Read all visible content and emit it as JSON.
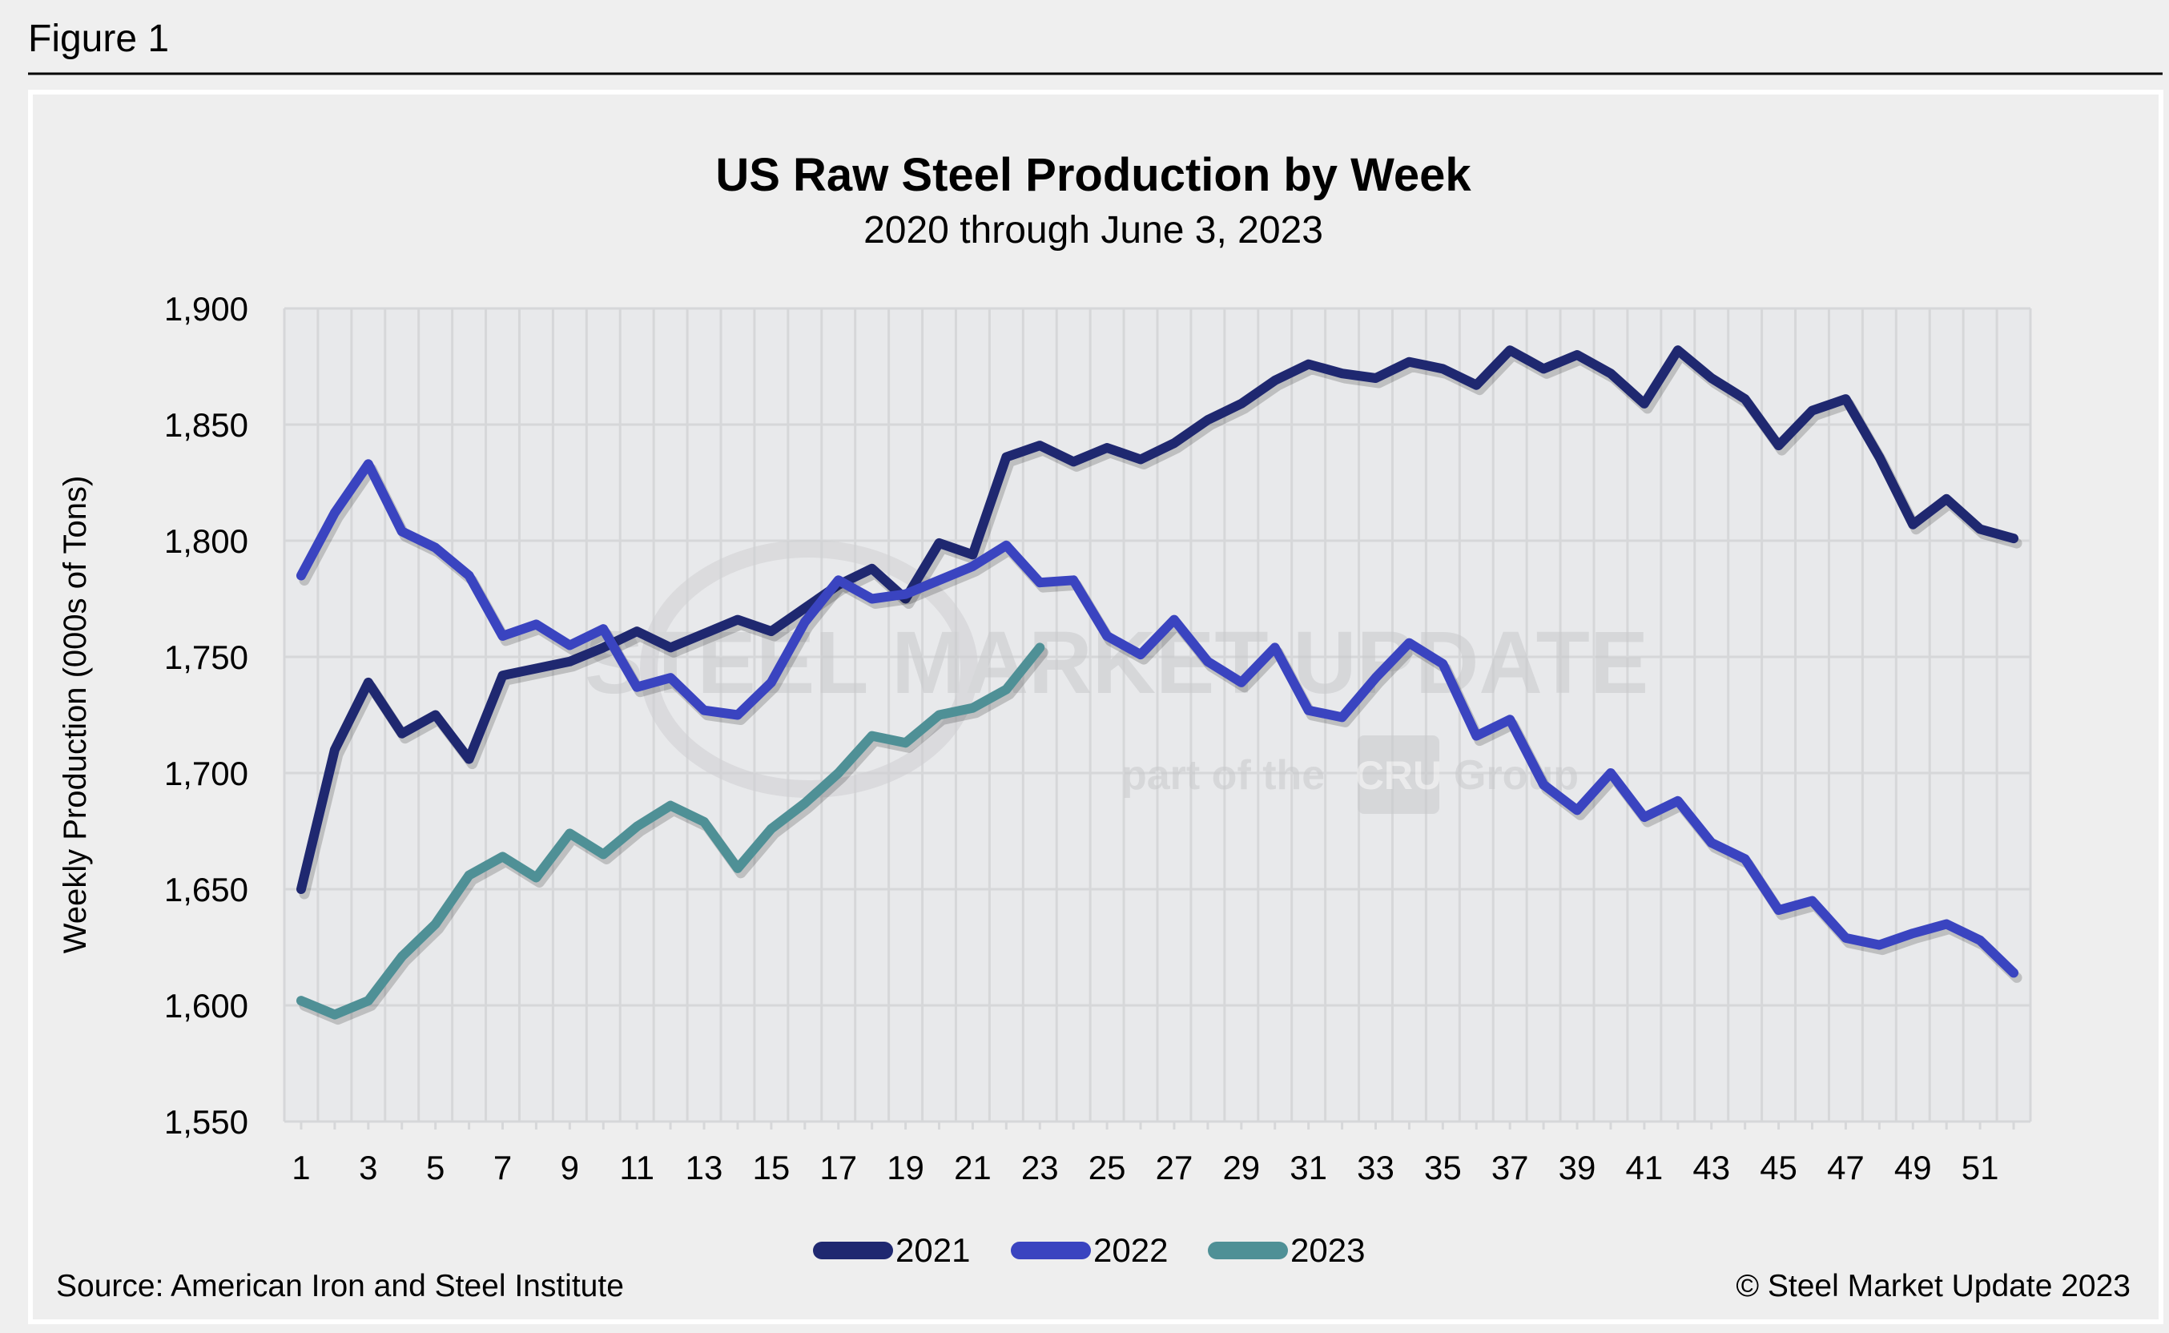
{
  "figure_label": "Figure 1",
  "source": "Source: American Iron and Steel Institute",
  "copyright": "© Steel Market Update 2023",
  "watermark": {
    "main": "STEEL MARKET UPDATE",
    "sub": "part of the",
    "brand": "CRU",
    "group": "Group"
  },
  "chart_data": {
    "type": "line",
    "title": "US Raw Steel Production by Week",
    "subtitle": "2020 through June 3, 2023",
    "xlabel": "",
    "ylabel": "Weekly Production (000s of Tons)",
    "ylim": [
      1550,
      1900
    ],
    "yticks": [
      1550,
      1600,
      1650,
      1700,
      1750,
      1800,
      1850,
      1900
    ],
    "ytick_labels": [
      "1,550",
      "1,600",
      "1,650",
      "1,700",
      "1,750",
      "1,800",
      "1,850",
      "1,900"
    ],
    "xlim": [
      1,
      52
    ],
    "xtick_labels": [
      "1",
      "3",
      "5",
      "7",
      "9",
      "11",
      "13",
      "15",
      "17",
      "19",
      "21",
      "23",
      "25",
      "27",
      "29",
      "31",
      "33",
      "35",
      "37",
      "39",
      "41",
      "43",
      "45",
      "47",
      "49",
      "51"
    ],
    "grid": true,
    "legend_position": "bottom",
    "series": [
      {
        "name": "2021",
        "color": "#1f2870",
        "values": [
          1650,
          1710,
          1739,
          1717,
          1725,
          1706,
          1742,
          1745,
          1748,
          1754,
          1761,
          1754,
          1760,
          1766,
          1761,
          1771,
          1781,
          1788,
          1775,
          1799,
          1794,
          1836,
          1841,
          1834,
          1840,
          1835,
          1842,
          1852,
          1859,
          1869,
          1876,
          1872,
          1870,
          1877,
          1874,
          1867,
          1882,
          1874,
          1880,
          1872,
          1859,
          1882,
          1870,
          1861,
          1841,
          1856,
          1861,
          1836,
          1807,
          1818,
          1805,
          1801
        ]
      },
      {
        "name": "2022",
        "color": "#3a44c0",
        "values": [
          1785,
          1812,
          1833,
          1804,
          1797,
          1785,
          1759,
          1764,
          1755,
          1762,
          1737,
          1741,
          1727,
          1725,
          1739,
          1765,
          1783,
          1775,
          1777,
          1783,
          1789,
          1798,
          1782,
          1783,
          1759,
          1751,
          1766,
          1748,
          1739,
          1754,
          1727,
          1724,
          1741,
          1756,
          1747,
          1716,
          1723,
          1695,
          1684,
          1700,
          1681,
          1688,
          1670,
          1663,
          1641,
          1645,
          1629,
          1626,
          1631,
          1635,
          1628,
          1614
        ]
      },
      {
        "name": "2023",
        "color": "#4f9096",
        "values": [
          1602,
          1596,
          1602,
          1621,
          1635,
          1656,
          1664,
          1655,
          1674,
          1665,
          1677,
          1686,
          1679,
          1659,
          1676,
          1687,
          1700,
          1716,
          1713,
          1725,
          1728,
          1736,
          1754
        ]
      }
    ]
  }
}
